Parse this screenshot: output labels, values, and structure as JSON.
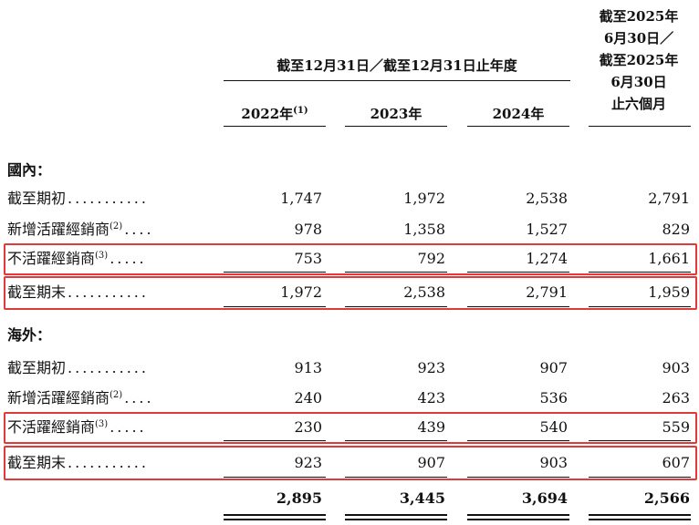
{
  "header": {
    "span_label": "截至12月31日／截至12月31日止年度",
    "last_col_lines": [
      "截至2025年",
      "6月30日／",
      "截至2025年",
      "6月30日",
      "止六個月"
    ],
    "years": [
      {
        "label": "2022年",
        "note": "(1)"
      },
      {
        "label": "2023年",
        "note": ""
      },
      {
        "label": "2024年",
        "note": ""
      }
    ]
  },
  "domestic": {
    "title": "國內：",
    "rows": [
      {
        "label": "截至期初",
        "note": "",
        "dots": "...........",
        "values": [
          "1,747",
          "1,972",
          "2,538",
          "2,791"
        ]
      },
      {
        "label": "新增活躍經銷商",
        "note": "(2)",
        "dots": "....",
        "values": [
          "978",
          "1,358",
          "1,527",
          "829"
        ]
      },
      {
        "label": "不活躍經銷商",
        "note": "(3)",
        "dots": ".....",
        "values": [
          "753",
          "792",
          "1,274",
          "1,661"
        ]
      },
      {
        "label": "截至期末",
        "note": "",
        "dots": "...........",
        "values": [
          "1,972",
          "2,538",
          "2,791",
          "1,959"
        ]
      }
    ]
  },
  "overseas": {
    "title": "海外：",
    "rows": [
      {
        "label": "截至期初",
        "note": "",
        "dots": "...........",
        "values": [
          "913",
          "923",
          "907",
          "903"
        ]
      },
      {
        "label": "新增活躍經銷商",
        "note": "(2)",
        "dots": "....",
        "values": [
          "240",
          "423",
          "536",
          "263"
        ]
      },
      {
        "label": "不活躍經銷商",
        "note": "(3)",
        "dots": ".....",
        "values": [
          "230",
          "439",
          "540",
          "559"
        ]
      },
      {
        "label": "截至期末",
        "note": "",
        "dots": "...........",
        "values": [
          "923",
          "907",
          "903",
          "607"
        ]
      }
    ]
  },
  "totals": [
    "2,895",
    "3,445",
    "3,694",
    "2,566"
  ],
  "highlight_color": "#e23a3a"
}
